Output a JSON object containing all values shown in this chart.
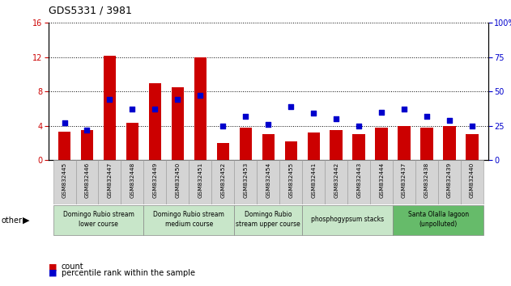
{
  "title": "GDS5331 / 3981",
  "samples": [
    "GSM832445",
    "GSM832446",
    "GSM832447",
    "GSM832448",
    "GSM832449",
    "GSM832450",
    "GSM832451",
    "GSM832452",
    "GSM832453",
    "GSM832454",
    "GSM832455",
    "GSM832441",
    "GSM832442",
    "GSM832443",
    "GSM832444",
    "GSM832437",
    "GSM832438",
    "GSM832439",
    "GSM832440"
  ],
  "counts": [
    3.3,
    3.5,
    12.2,
    4.4,
    9.0,
    8.5,
    12.0,
    2.0,
    3.8,
    3.0,
    2.2,
    3.2,
    3.5,
    3.0,
    3.8,
    4.0,
    3.8,
    4.0,
    3.0
  ],
  "percentiles": [
    27,
    22,
    44,
    37,
    37,
    44,
    47,
    25,
    32,
    26,
    39,
    34,
    30,
    25,
    35,
    37,
    32,
    29,
    25
  ],
  "ylim_left": [
    0,
    16
  ],
  "ylim_right": [
    0,
    100
  ],
  "yticks_left": [
    0,
    4,
    8,
    12,
    16
  ],
  "yticks_right": [
    0,
    25,
    50,
    75,
    100
  ],
  "bar_color": "#cc0000",
  "dot_color": "#0000cc",
  "groups": [
    {
      "label": "Domingo Rubio stream\nlower course",
      "start": 0,
      "end": 3,
      "color": "#c8e6c9"
    },
    {
      "label": "Domingo Rubio stream\nmedium course",
      "start": 4,
      "end": 7,
      "color": "#c8e6c9"
    },
    {
      "label": "Domingo Rubio\nstream upper course",
      "start": 8,
      "end": 10,
      "color": "#c8e6c9"
    },
    {
      "label": "phosphogypsum stacks",
      "start": 11,
      "end": 14,
      "color": "#c8e6c9"
    },
    {
      "label": "Santa Olalla lagoon\n(unpolluted)",
      "start": 15,
      "end": 18,
      "color": "#66bb6a"
    }
  ],
  "legend_count": "count",
  "legend_pct": "percentile rank within the sample"
}
